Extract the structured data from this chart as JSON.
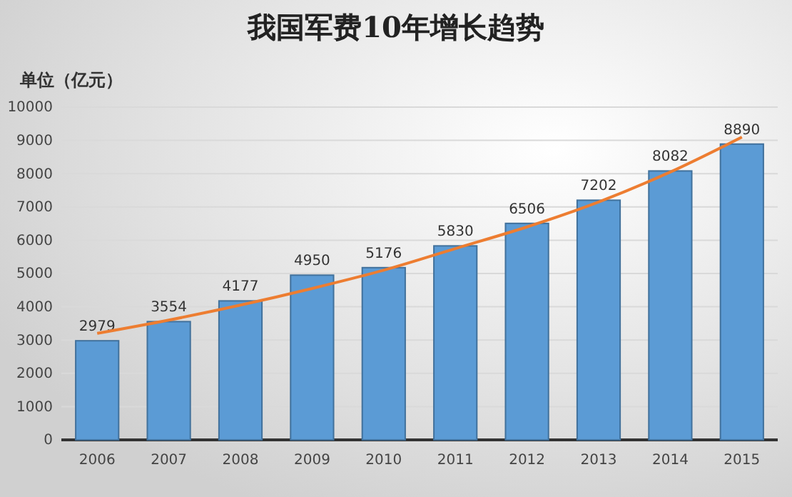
{
  "chart_data": {
    "type": "bar",
    "title": "我国军费10年增长趋势",
    "ylabel": "单位（亿元）",
    "categories": [
      "2006",
      "2007",
      "2008",
      "2009",
      "2010",
      "2011",
      "2012",
      "2013",
      "2014",
      "2015"
    ],
    "series": [
      {
        "color": "#5b9bd5",
        "values": [
          2979,
          3554,
          4177,
          4950,
          5176,
          5830,
          6506,
          7202,
          8082,
          8890
        ],
        "value_labels": [
          "2979",
          "3554",
          "4177",
          "4950",
          "5176",
          "5830",
          "6506",
          "7202",
          "8082",
          "8890"
        ]
      },
      {
        "type": "line",
        "color": "#ed7d31",
        "values": [
          3200,
          3600,
          4050,
          4550,
          5100,
          5750,
          6400,
          7150,
          8050,
          9100
        ]
      }
    ],
    "ylim": [
      0,
      10000
    ],
    "yticks": [
      0,
      1000,
      2000,
      3000,
      4000,
      5000,
      6000,
      7000,
      8000,
      9000,
      10000
    ],
    "grid": "y",
    "marker": "none"
  }
}
